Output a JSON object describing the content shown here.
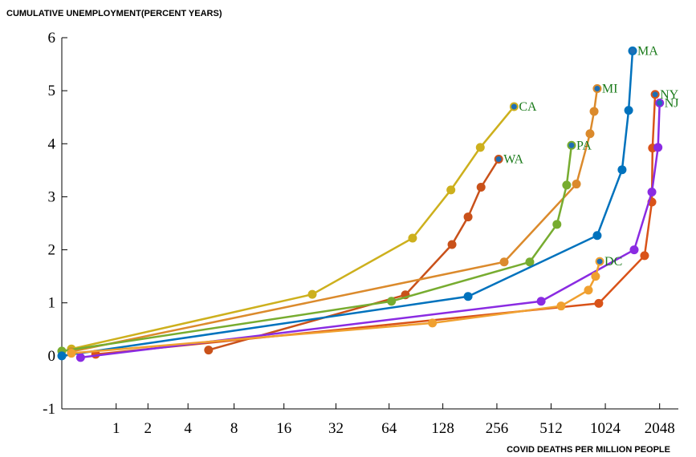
{
  "chart_data": {
    "type": "line",
    "title": "CUMULATIVE UNEMPLOYMENT(PERCENT YEARS)",
    "x_label": "COVID DEATHS PER MILLION PEOPLE",
    "xscale": "log2(1+x)",
    "xlim": [
      0,
      2600
    ],
    "ylim": [
      -1,
      6
    ],
    "xticks": [
      1,
      2,
      4,
      8,
      16,
      32,
      64,
      128,
      256,
      512,
      1024,
      2048
    ],
    "yticks": [
      -1,
      0,
      1,
      2,
      3,
      4,
      5,
      6
    ],
    "series": [
      {
        "name": "CA",
        "color": "#cdb01d",
        "x": [
          0.13,
          23.4,
          86.7,
          142,
          207,
          319
        ],
        "values": [
          0.13,
          1.16,
          2.22,
          3.13,
          3.93,
          4.7
        ]
      },
      {
        "name": "WA",
        "color": "#c9511a",
        "x": [
          5.5,
          79,
          144,
          177,
          209,
          262
        ],
        "values": [
          0.11,
          1.15,
          2.1,
          2.62,
          3.18,
          3.71
        ]
      },
      {
        "name": "MI",
        "color": "#db8a2c",
        "x": [
          0.13,
          281,
          708,
          842,
          887,
          923
        ],
        "values": [
          0.08,
          1.77,
          3.24,
          4.19,
          4.61,
          5.04
        ]
      },
      {
        "name": "PA",
        "color": "#77ac30",
        "x": [
          0,
          66,
          390,
          552,
          625,
          665
        ],
        "values": [
          0.09,
          1.03,
          1.77,
          2.48,
          3.22,
          3.97
        ]
      },
      {
        "name": "MA",
        "color": "#0072bd",
        "x": [
          0,
          177,
          923,
          1268,
          1379,
          1450
        ],
        "values": [
          0.0,
          1.12,
          2.27,
          3.51,
          4.63,
          5.75
        ]
      },
      {
        "name": "NY",
        "color": "#d95319",
        "x": [
          0.54,
          942,
          1690,
          1855,
          1870,
          1934
        ],
        "values": [
          0.03,
          0.99,
          1.89,
          2.9,
          3.92,
          4.93
        ]
      },
      {
        "name": "NJ",
        "color": "#8a2be2",
        "x": [
          0.27,
          451,
          1480,
          1855,
          2006,
          2048
        ],
        "values": [
          -0.03,
          1.03,
          2.0,
          3.09,
          3.93,
          4.77
        ]
      },
      {
        "name": "DC",
        "color": "#f0a030",
        "x": [
          0.13,
          112,
          582,
          825,
          904,
          953
        ],
        "values": [
          0.05,
          0.62,
          0.94,
          1.24,
          1.5,
          1.78
        ]
      }
    ]
  }
}
